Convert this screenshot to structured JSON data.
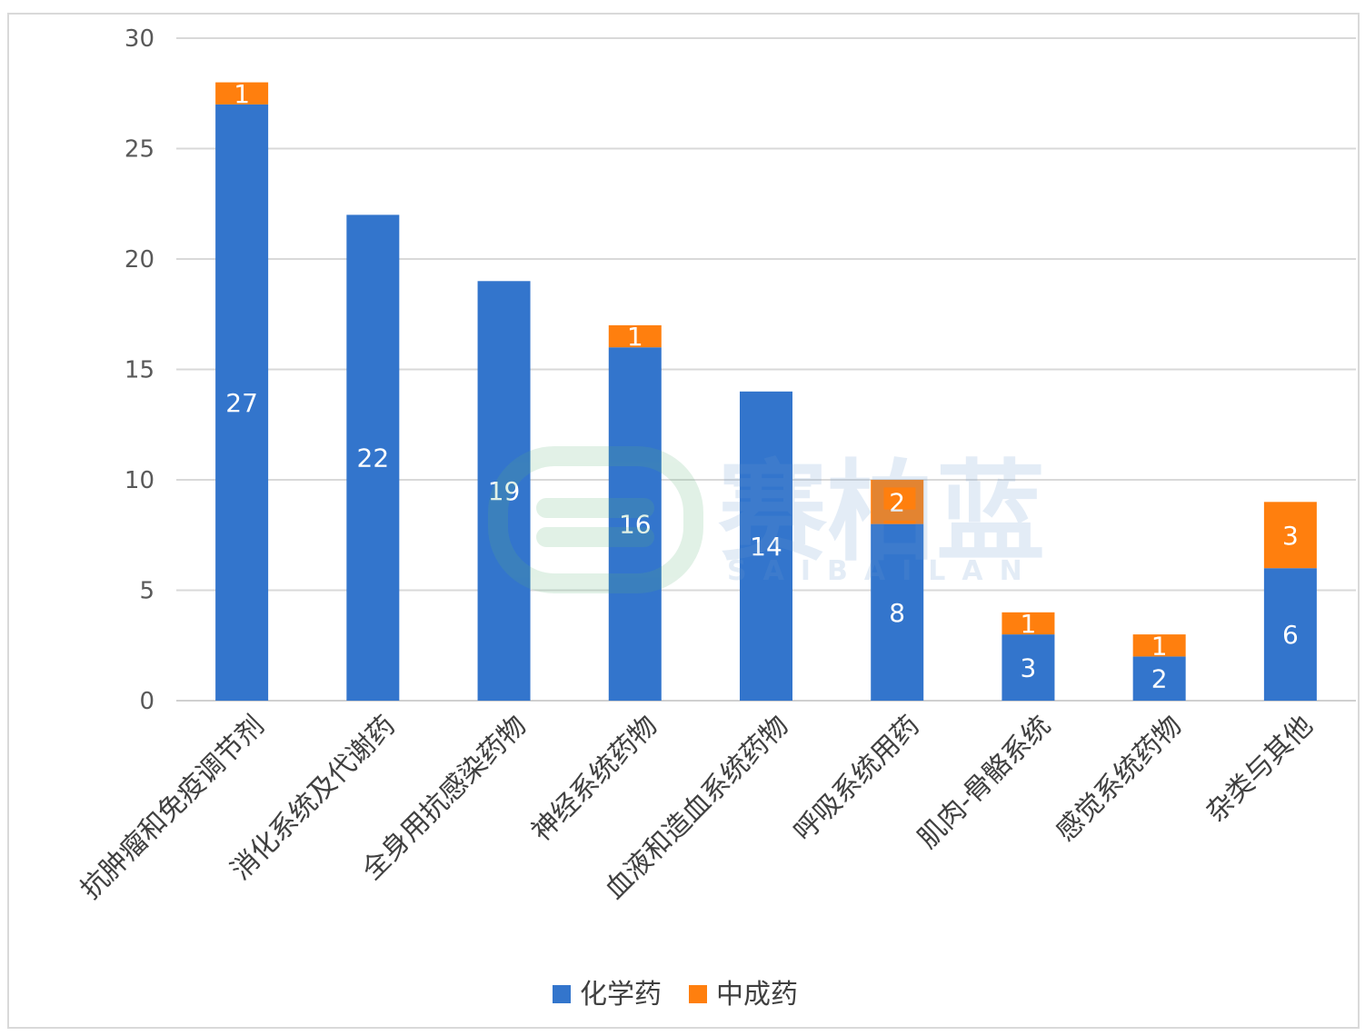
{
  "chart_data": {
    "type": "bar",
    "stacked": true,
    "categories": [
      "抗肿瘤和免疫调节剂",
      "消化系统及代谢药",
      "全身用抗感染药物",
      "神经系统药物",
      "血液和造血系统药物",
      "呼吸系统用药",
      "肌肉-骨骼系统",
      "感觉系统药物",
      "杂类与其他"
    ],
    "series": [
      {
        "name": "化学药",
        "values": [
          27,
          22,
          19,
          16,
          14,
          8,
          3,
          2,
          6
        ],
        "color": "#3375CC"
      },
      {
        "name": "中成药",
        "values": [
          1,
          0,
          0,
          1,
          0,
          2,
          1,
          1,
          3
        ],
        "color": "#FF7F0E"
      }
    ],
    "ylim": [
      0,
      30
    ],
    "yticks": [
      0,
      5,
      10,
      15,
      20,
      25,
      30
    ],
    "grid": true,
    "legend_position": "bottom",
    "watermark": {
      "text_cn": "赛柏蓝",
      "text_en": "SAIBAILAN"
    }
  }
}
